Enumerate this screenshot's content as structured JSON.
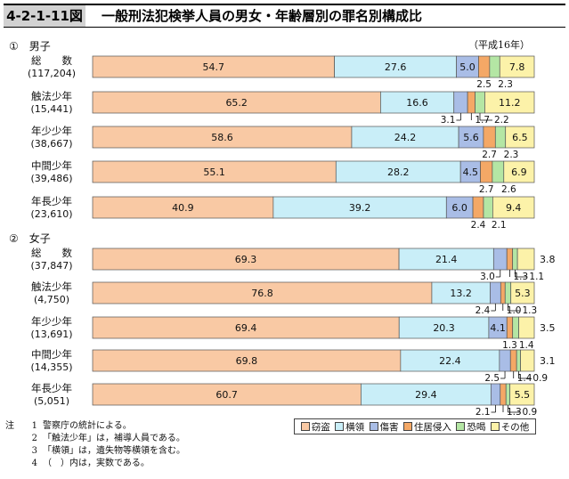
{
  "header": {
    "figure_number": "4-2-1-11図",
    "title": "一般刑法犯検挙人員の男女・年齢層別の罪名別構成比",
    "unit_note": "（平成16年）"
  },
  "legend": [
    {
      "name": "窃盗",
      "color": "#f9c9a4"
    },
    {
      "name": "横領",
      "color": "#c9eef8"
    },
    {
      "name": "傷害",
      "color": "#a9bde6"
    },
    {
      "name": "住居侵入",
      "color": "#f4a866"
    },
    {
      "name": "恐喝",
      "color": "#b4e6a4"
    },
    {
      "name": "その他",
      "color": "#fcf2a9"
    }
  ],
  "notes": [
    {
      "lead": "注",
      "num": "1",
      "text": "警察庁の統計による。"
    },
    {
      "lead": "",
      "num": "2",
      "text": "「触法少年」は，補導人員である。"
    },
    {
      "lead": "",
      "num": "3",
      "text": "「横領」は，遺失物等横領を含む。"
    },
    {
      "lead": "",
      "num": "4",
      "text": "（　）内は，実数である。"
    }
  ],
  "chart_data": {
    "type": "bar",
    "stacked": "100%",
    "orientation": "horizontal",
    "series_names": [
      "窃盗",
      "横領",
      "傷害",
      "住居侵入",
      "恐喝",
      "その他"
    ],
    "groups": [
      {
        "label": "①　男子",
        "rows": [
          {
            "label": "総　　数",
            "count": "(117,204)",
            "values": [
              54.7,
              27.6,
              5.0,
              2.5,
              2.3,
              7.8
            ],
            "inner_labels": [
              "54.7",
              "27.6",
              "5.0",
              "",
              "",
              "7.8"
            ],
            "below_labels": [
              {
                "series": 3,
                "text": "2.5"
              },
              {
                "series": 4,
                "text": "2.3"
              }
            ]
          },
          {
            "label": "触法少年",
            "count": "(15,441)",
            "values": [
              65.2,
              16.6,
              3.1,
              1.7,
              2.2,
              11.2
            ],
            "inner_labels": [
              "65.2",
              "16.6",
              "",
              "",
              "",
              "11.2"
            ],
            "below_labels": [
              {
                "series": 2,
                "text": "3.1"
              },
              {
                "series": 3,
                "text": "1.7"
              },
              {
                "series": 4,
                "text": "2.2"
              }
            ]
          },
          {
            "label": "年少少年",
            "count": "(38,667)",
            "values": [
              58.6,
              24.2,
              5.6,
              2.7,
              2.3,
              6.5
            ],
            "inner_labels": [
              "58.6",
              "24.2",
              "5.6",
              "",
              "",
              "6.5"
            ],
            "below_labels": [
              {
                "series": 3,
                "text": "2.7"
              },
              {
                "series": 4,
                "text": "2.3"
              }
            ]
          },
          {
            "label": "中間少年",
            "count": "(39,486)",
            "values": [
              55.1,
              28.2,
              4.5,
              2.7,
              2.6,
              6.9
            ],
            "inner_labels": [
              "55.1",
              "28.2",
              "4.5",
              "",
              "",
              "6.9"
            ],
            "below_labels": [
              {
                "series": 3,
                "text": "2.7"
              },
              {
                "series": 4,
                "text": "2.6"
              }
            ]
          },
          {
            "label": "年長少年",
            "count": "(23,610)",
            "values": [
              40.9,
              39.2,
              6.0,
              2.4,
              2.1,
              9.4
            ],
            "inner_labels": [
              "40.9",
              "39.2",
              "6.0",
              "",
              "",
              "9.4"
            ],
            "below_labels": [
              {
                "series": 3,
                "text": "2.4"
              },
              {
                "series": 4,
                "text": "2.1"
              }
            ]
          }
        ]
      },
      {
        "label": "②　女子",
        "rows": [
          {
            "label": "総　　数",
            "count": "(37,847)",
            "values": [
              69.3,
              21.4,
              3.0,
              1.3,
              1.1,
              3.8
            ],
            "inner_labels": [
              "69.3",
              "21.4",
              "",
              "",
              "",
              ""
            ],
            "below_labels": [
              {
                "series": 2,
                "text": "3.0"
              },
              {
                "series": 3,
                "text": "1.3"
              },
              {
                "series": 4,
                "text": "1.1"
              }
            ],
            "right_label": "3.8"
          },
          {
            "label": "触法少年",
            "count": "(4,750)",
            "values": [
              76.8,
              13.2,
              2.4,
              1.0,
              1.3,
              5.3
            ],
            "inner_labels": [
              "76.8",
              "13.2",
              "",
              "",
              "",
              "5.3"
            ],
            "below_labels": [
              {
                "series": 2,
                "text": "2.4"
              },
              {
                "series": 3,
                "text": "1.0"
              },
              {
                "series": 4,
                "text": "1.3"
              }
            ]
          },
          {
            "label": "年少少年",
            "count": "(13,691)",
            "values": [
              69.4,
              20.3,
              4.1,
              1.3,
              1.4,
              3.5
            ],
            "inner_labels": [
              "69.4",
              "20.3",
              "4.1",
              "",
              "",
              ""
            ],
            "below_labels": [
              {
                "series": 3,
                "text": "1.3"
              },
              {
                "series": 4,
                "text": "1.4"
              }
            ],
            "right_label": "3.5"
          },
          {
            "label": "中間少年",
            "count": "(14,355)",
            "values": [
              69.8,
              22.4,
              2.5,
              1.4,
              0.9,
              3.1
            ],
            "inner_labels": [
              "69.8",
              "22.4",
              "",
              "",
              "",
              ""
            ],
            "below_labels": [
              {
                "series": 2,
                "text": "2.5"
              },
              {
                "series": 3,
                "text": "1.4"
              },
              {
                "series": 4,
                "text": "0.9"
              }
            ],
            "right_label": "3.1"
          },
          {
            "label": "年長少年",
            "count": "(5,051)",
            "values": [
              60.7,
              29.4,
              2.1,
              1.3,
              0.9,
              5.5
            ],
            "inner_labels": [
              "60.7",
              "29.4",
              "",
              "",
              "",
              "5.5"
            ],
            "below_labels": [
              {
                "series": 2,
                "text": "2.1"
              },
              {
                "series": 3,
                "text": "1.3"
              },
              {
                "series": 4,
                "text": "0.9"
              }
            ]
          }
        ]
      }
    ]
  }
}
